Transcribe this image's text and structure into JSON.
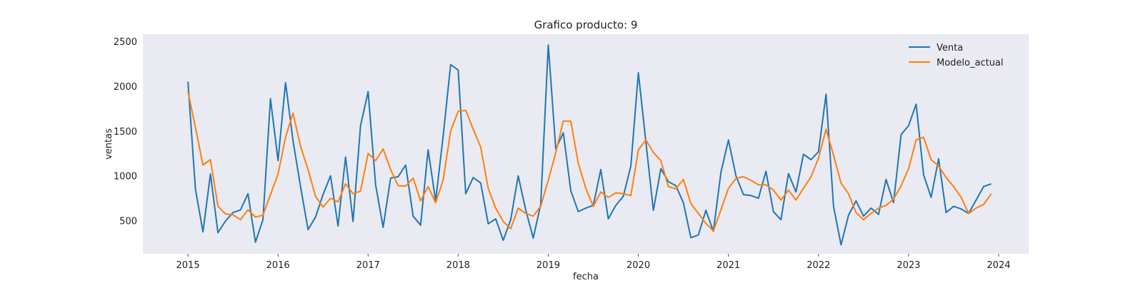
{
  "chart_data": {
    "type": "line",
    "title": "Grafico producto: 9",
    "xlabel": "fecha",
    "ylabel": "ventas",
    "x_ticks": [
      "2015",
      "2016",
      "2017",
      "2018",
      "2019",
      "2020",
      "2021",
      "2022",
      "2023",
      "2024"
    ],
    "y_ticks": [
      500,
      1000,
      1500,
      2000,
      2500
    ],
    "xlim": [
      "2014-07",
      "2024-05"
    ],
    "ylim": [
      130,
      2580
    ],
    "grid": false,
    "legend_position": "top-right",
    "colors": {
      "plot_background": "#eaeaf2",
      "Venta": "#1f77b4",
      "Modelo_actual": "#ff7f0e"
    },
    "x": [
      "2015-01",
      "2015-02",
      "2015-03",
      "2015-04",
      "2015-05",
      "2015-06",
      "2015-07",
      "2015-08",
      "2015-09",
      "2015-10",
      "2015-11",
      "2015-12",
      "2016-01",
      "2016-02",
      "2016-03",
      "2016-04",
      "2016-05",
      "2016-06",
      "2016-07",
      "2016-08",
      "2016-09",
      "2016-10",
      "2016-11",
      "2016-12",
      "2017-01",
      "2017-02",
      "2017-03",
      "2017-04",
      "2017-05",
      "2017-06",
      "2017-07",
      "2017-08",
      "2017-09",
      "2017-10",
      "2017-11",
      "2017-12",
      "2018-01",
      "2018-02",
      "2018-03",
      "2018-04",
      "2018-05",
      "2018-06",
      "2018-07",
      "2018-08",
      "2018-09",
      "2018-10",
      "2018-11",
      "2018-12",
      "2019-01",
      "2019-02",
      "2019-03",
      "2019-04",
      "2019-05",
      "2019-06",
      "2019-07",
      "2019-08",
      "2019-09",
      "2019-10",
      "2019-11",
      "2019-12",
      "2020-01",
      "2020-02",
      "2020-03",
      "2020-04",
      "2020-05",
      "2020-06",
      "2020-07",
      "2020-08",
      "2020-09",
      "2020-10",
      "2020-11",
      "2020-12",
      "2021-01",
      "2021-02",
      "2021-03",
      "2021-04",
      "2021-05",
      "2021-06",
      "2021-07",
      "2021-08",
      "2021-09",
      "2021-10",
      "2021-11",
      "2021-12",
      "2022-01",
      "2022-02",
      "2022-03",
      "2022-04",
      "2022-05",
      "2022-06",
      "2022-07",
      "2022-08",
      "2022-09",
      "2022-10",
      "2022-11",
      "2022-12",
      "2023-01",
      "2023-02",
      "2023-03",
      "2023-04",
      "2023-05",
      "2023-06",
      "2023-07",
      "2023-08",
      "2023-09",
      "2023-10",
      "2023-11",
      "2023-12"
    ],
    "series": [
      {
        "name": "Venta",
        "values": [
          2050,
          850,
          375,
          1020,
          365,
          495,
          590,
          620,
          800,
          260,
          510,
          1860,
          1170,
          2040,
          1390,
          880,
          400,
          540,
          790,
          1000,
          440,
          1210,
          490,
          1560,
          1940,
          900,
          425,
          975,
          990,
          1120,
          550,
          450,
          1290,
          720,
          1440,
          2240,
          2180,
          800,
          980,
          920,
          465,
          520,
          280,
          510,
          1000,
          620,
          305,
          680,
          2460,
          1300,
          1480,
          835,
          600,
          640,
          670,
          1070,
          520,
          670,
          770,
          1110,
          2150,
          1380,
          615,
          1080,
          935,
          890,
          700,
          310,
          340,
          615,
          380,
          1040,
          1400,
          1000,
          790,
          780,
          750,
          1050,
          600,
          510,
          1025,
          820,
          1240,
          1180,
          1270,
          1910,
          660,
          230,
          560,
          720,
          550,
          640,
          570,
          960,
          700,
          1460,
          1560,
          1800,
          1010,
          760,
          1190,
          590,
          660,
          630,
          580,
          730,
          880,
          910
        ]
      },
      {
        "name": "Modelo_actual",
        "values": [
          1940,
          1540,
          1120,
          1180,
          660,
          575,
          565,
          510,
          620,
          540,
          560,
          790,
          1020,
          1430,
          1700,
          1330,
          1070,
          770,
          650,
          750,
          710,
          910,
          800,
          830,
          1250,
          1170,
          1300,
          1070,
          890,
          885,
          975,
          720,
          880,
          700,
          950,
          1500,
          1720,
          1730,
          1520,
          1320,
          860,
          640,
          490,
          410,
          640,
          580,
          550,
          660,
          950,
          1260,
          1610,
          1610,
          1140,
          860,
          660,
          820,
          760,
          810,
          800,
          780,
          1290,
          1400,
          1260,
          1170,
          880,
          855,
          960,
          690,
          580,
          470,
          385,
          620,
          860,
          970,
          990,
          950,
          900,
          900,
          840,
          730,
          840,
          730,
          860,
          990,
          1200,
          1520,
          1230,
          920,
          800,
          590,
          510,
          580,
          640,
          670,
          740,
          890,
          1080,
          1400,
          1430,
          1180,
          1110,
          980,
          880,
          760,
          580,
          640,
          680,
          800
        ]
      }
    ]
  }
}
